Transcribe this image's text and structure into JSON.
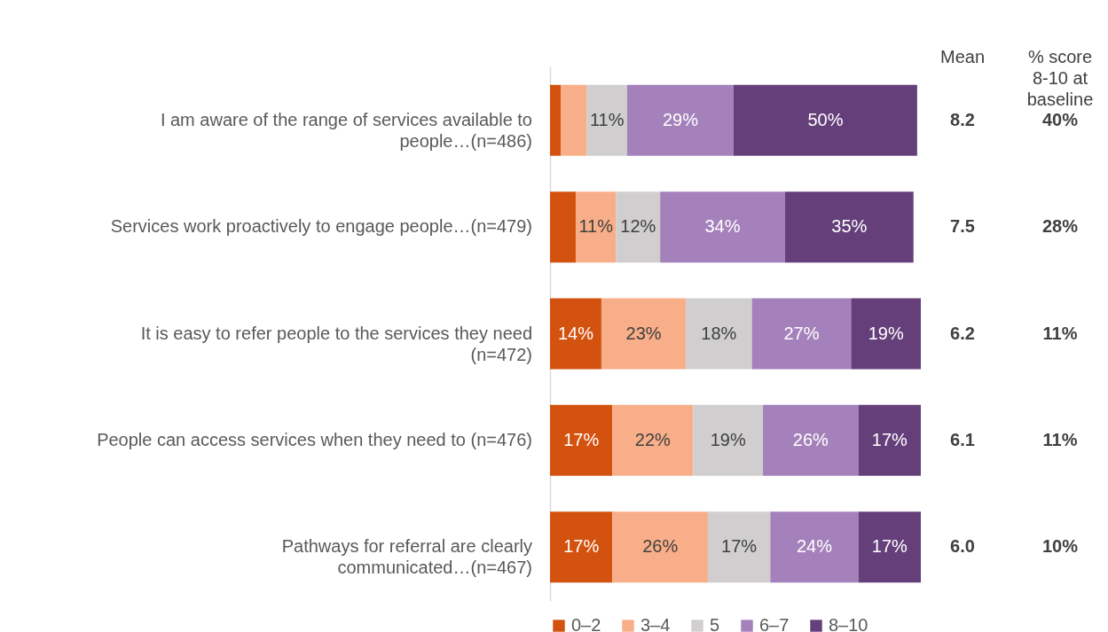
{
  "chart_data": {
    "type": "bar",
    "orientation": "horizontal",
    "stacked": true,
    "legend": "bottom",
    "categories": [
      "I am aware of the range of services available to people…(n=486)",
      "Services work proactively to engage people…(n=479)",
      "It is easy to refer people to the services they need (n=472)",
      "People can access services when they need to (n=476)",
      "Pathways for referral are clearly communicated…(n=467)"
    ],
    "series": [
      {
        "name": "0–2",
        "color": "#d4520f",
        "values": [
          3,
          7,
          14,
          17,
          17
        ],
        "value_labels": [
          null,
          null,
          "14%",
          "17%",
          "17%"
        ]
      },
      {
        "name": "3–4",
        "color": "#f8ae88",
        "values": [
          7,
          11,
          23,
          22,
          26
        ],
        "value_labels": [
          null,
          "11%",
          "23%",
          "22%",
          "26%"
        ]
      },
      {
        "name": "5",
        "color": "#d0cece",
        "values": [
          11,
          12,
          18,
          19,
          17
        ],
        "value_labels": [
          "11%",
          "12%",
          "18%",
          "19%",
          "17%"
        ]
      },
      {
        "name": "6–7",
        "color": "#a481bb",
        "values": [
          29,
          34,
          27,
          26,
          24
        ],
        "value_labels": [
          "29%",
          "34%",
          "27%",
          "26%",
          "24%"
        ]
      },
      {
        "name": "8–10",
        "color": "#653f7a",
        "values": [
          50,
          35,
          19,
          17,
          17
        ],
        "value_labels": [
          "50%",
          "35%",
          "19%",
          "17%",
          "17%"
        ]
      }
    ],
    "annotations": [
      "Mean",
      "% score 8-10 at baseline",
      "8.2",
      "7.5",
      "6.2",
      "6.1",
      "6.0",
      "40%",
      "28%",
      "11%",
      "11%",
      "10%"
    ]
  }
}
